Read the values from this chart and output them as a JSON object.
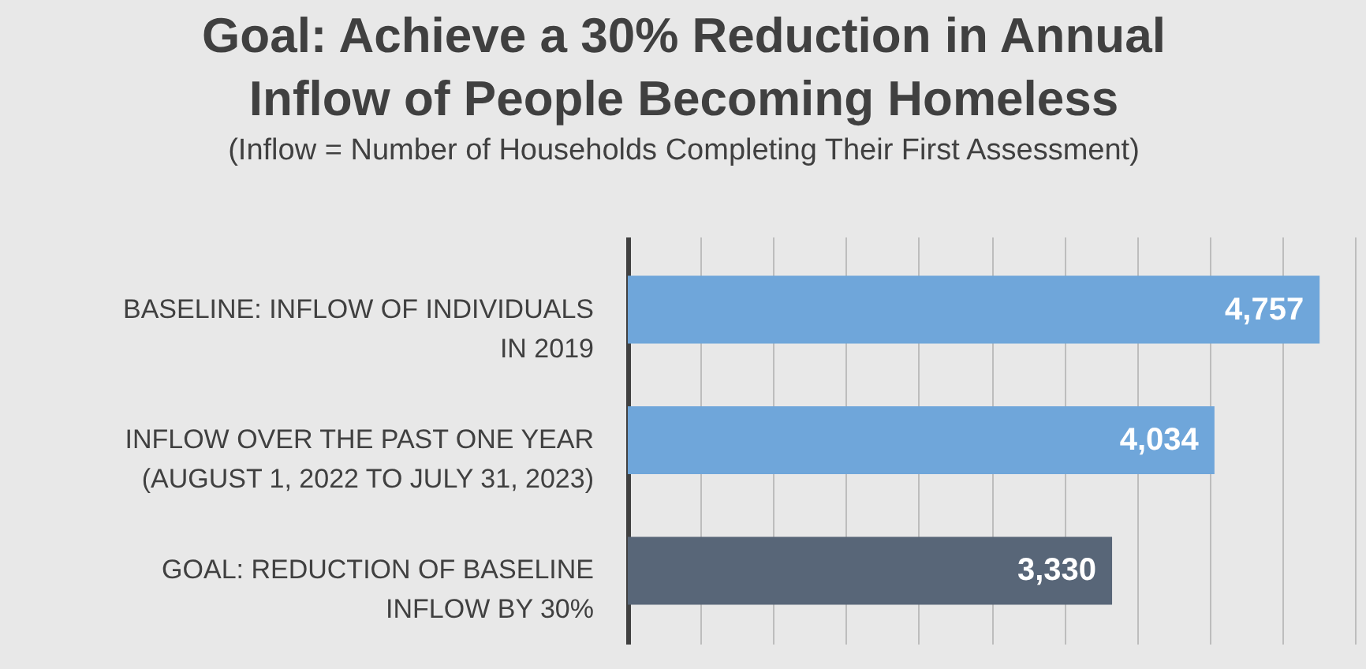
{
  "chart_data": {
    "type": "bar",
    "orientation": "horizontal",
    "title": "Goal: Achieve a 30% Reduction in Annual\nInflow of People Becoming Homeless",
    "subtitle": "(Inflow = Number of  Households Completing Their First Assessment)",
    "categories": [
      "BASELINE: INFLOW OF INDIVIDUALS\nIN 2019",
      "INFLOW OVER THE PAST ONE YEAR\n(AUGUST 1, 2022 TO JULY 31, 2023)",
      "GOAL: REDUCTION OF BASELINE\nINFLOW BY 30%"
    ],
    "values": [
      4757,
      4034,
      3330
    ],
    "value_labels": [
      "4,757",
      "4,034",
      "3,330"
    ],
    "colors": [
      "#6fa6da",
      "#6fa6da",
      "#586678"
    ],
    "grid": "x",
    "tick_labels": "y"
  }
}
